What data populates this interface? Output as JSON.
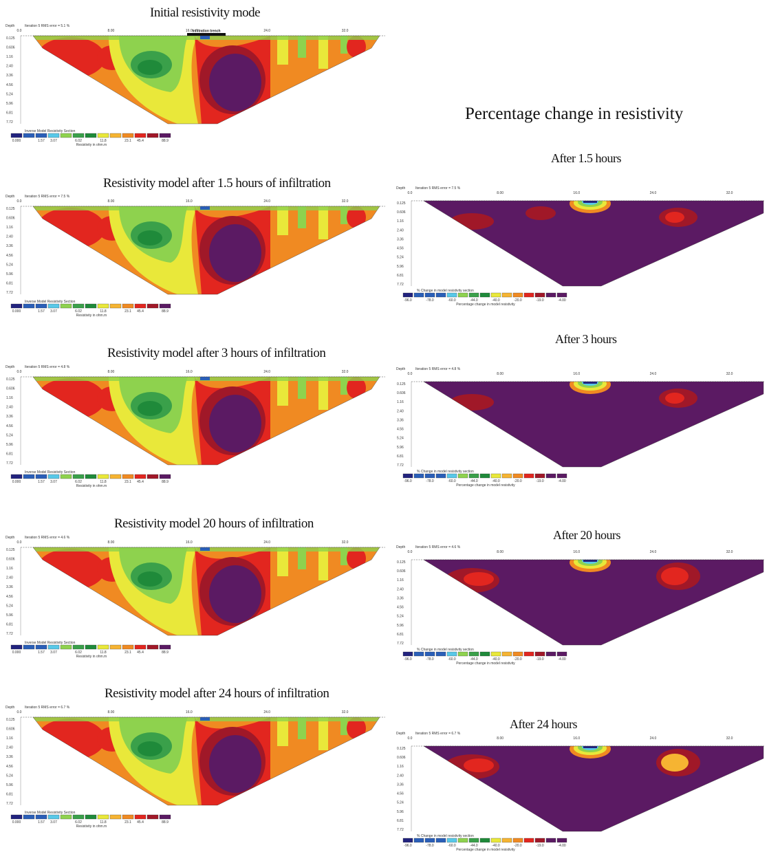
{
  "figure": {
    "heading_right": "Percentage change in resistivity",
    "left_panels": [
      {
        "title": "Initial  resistivity mode",
        "header": "Iteration 5 RMS error = 5.1 %",
        "trench_label": "Infiltration trench",
        "legend_title": "Inverse Model Resistivity Section",
        "legend_unit": "Resistivity in ohm.m"
      },
      {
        "title": "Resistivity model after 1.5 hours of infiltration",
        "header": "Iteration 5 RMS error = 7.5 %",
        "trench_label": "",
        "legend_title": "Inverse Model Resistivity Section",
        "legend_unit": "Resistivity in ohm.m"
      },
      {
        "title": "Resistivity model after 3 hours of infiltration",
        "header": "Iteration 5 RMS error = 4.8 %",
        "trench_label": "",
        "legend_title": "Inverse Model Resistivity Section",
        "legend_unit": "Resistivity in ohm.m"
      },
      {
        "title": "Resistivity model 20 hours of infiltration",
        "header": "Iteration 5 RMS error = 4.6 %",
        "trench_label": "",
        "legend_title": "Inverse Model Resistivity Section",
        "legend_unit": "Resistivity in ohm.m"
      },
      {
        "title": "Resistivity model after 24 hours of infiltration",
        "header": "Iteration 5 RMS error = 6.7 %",
        "trench_label": "",
        "legend_title": "Inverse Model Resistivity Section",
        "legend_unit": "Resistivity in ohm.m"
      }
    ],
    "right_panels": [
      {
        "title": "After  1.5 hours",
        "header": "Iteration 5 RMS error = 7.5 %",
        "legend_title": "% Change in model resistivity section",
        "legend_unit": "Percentage change in model resistivity"
      },
      {
        "title": "After 3 hours",
        "header": "Iteration 5 RMS error = 4.8 %",
        "legend_title": "% Change in model resistivity section",
        "legend_unit": "Percentage change in model resistivity"
      },
      {
        "title": "After 20 hours",
        "header": "Iteration 5 RMS error = 4.6 %",
        "legend_title": "% Change in model resistivity section",
        "legend_unit": "Percentage change in model resistivity"
      },
      {
        "title": "After  24 hours",
        "header": "Iteration 5 RMS error = 6.7 %",
        "legend_title": "% Change in model resistivity section",
        "legend_unit": "Percentage change in model resistivity"
      }
    ],
    "depth_label": "Depth",
    "x_ticks": [
      "0.0",
      "8.00",
      "16.0",
      "24.0",
      "32.0"
    ],
    "depth_ticks": [
      "0.125",
      "0.606",
      "1.16",
      "2.40",
      "3.36",
      "4.56",
      "5.24",
      "5.96",
      "6.81",
      "7.72"
    ],
    "resistivity_legend": [
      "0.000",
      "1.57",
      "3.07",
      "6.02",
      "11.8",
      "23.1",
      "45.4",
      "88.9"
    ],
    "percent_legend": [
      "-96.0",
      "-78.0",
      "-60.0",
      "-44.0",
      "-40.0",
      "-20.0",
      "-19.0",
      "-4.00"
    ],
    "colors": {
      "purple": "#5b1a63",
      "darkred": "#a01828",
      "red": "#e2261f",
      "orange": "#f08a22",
      "lightorange": "#f6b432",
      "yellow": "#e9e83a",
      "lightgreen": "#8ed24e",
      "green": "#3aa04a",
      "darkgreen": "#1f8a3a",
      "cyan": "#58c8e8",
      "blue": "#2a5fb8",
      "navy": "#22237e"
    }
  }
}
